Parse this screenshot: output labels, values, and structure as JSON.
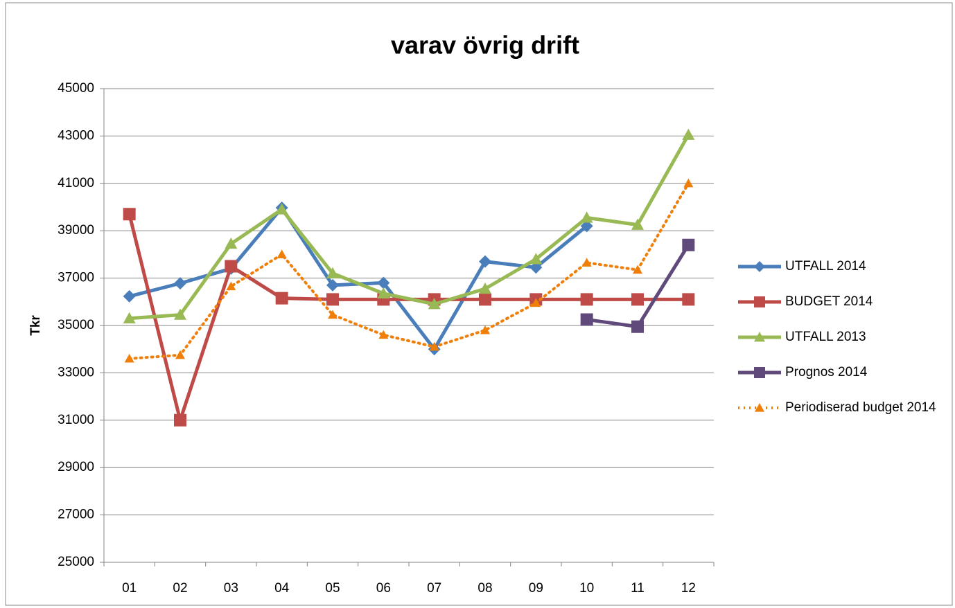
{
  "chart_data": {
    "type": "line",
    "title": "varav övrig drift",
    "y_label": "Tkr",
    "categories": [
      "01",
      "02",
      "03",
      "04",
      "05",
      "06",
      "07",
      "08",
      "09",
      "10",
      "11",
      "12"
    ],
    "series": [
      {
        "name": "UTFALL 2014",
        "color": "#4a7ebb",
        "marker": "diamond",
        "dash": "solid",
        "values": [
          36230,
          36780,
          37400,
          39970,
          36700,
          36800,
          34000,
          37700,
          37450,
          39200,
          null,
          null
        ]
      },
      {
        "name": "BUDGET 2014",
        "color": "#be4b48",
        "marker": "square",
        "dash": "solid",
        "values": [
          39700,
          31000,
          37500,
          36150,
          36100,
          36100,
          36100,
          36100,
          36100,
          36100,
          36100,
          36100
        ]
      },
      {
        "name": "UTFALL 2013",
        "color": "#98b954",
        "marker": "triangle",
        "dash": "solid",
        "values": [
          35300,
          35450,
          38450,
          39900,
          37200,
          36350,
          35900,
          36550,
          37800,
          39550,
          39250,
          43050
        ]
      },
      {
        "name": "Prognos 2014",
        "color": "#604a7b",
        "marker": "square",
        "dash": "solid",
        "values": [
          null,
          null,
          null,
          null,
          null,
          null,
          null,
          null,
          null,
          35250,
          34950,
          38400
        ]
      },
      {
        "name": "Periodiserad budget 2014",
        "color": "#f07f09",
        "marker": "triangle",
        "dash": "dotted",
        "values": [
          33600,
          33750,
          36650,
          38000,
          35450,
          34600,
          34100,
          34800,
          35950,
          37650,
          37350,
          41000
        ]
      }
    ],
    "ylim": [
      25000,
      45000
    ],
    "yticks": [
      25000,
      27000,
      29000,
      31000,
      33000,
      35000,
      37000,
      39000,
      41000,
      43000,
      45000
    ],
    "grid": true,
    "legend": "right"
  }
}
